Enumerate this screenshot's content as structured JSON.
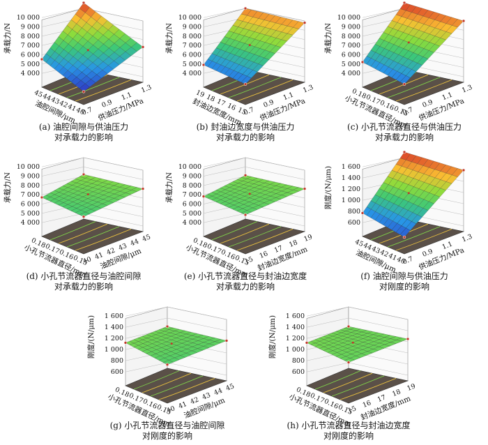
{
  "chart_data": [
    {
      "id": "a",
      "type": "surface",
      "caption_1": "(a)  油腔间隙与供油压力",
      "caption_2": "对承载力的影响",
      "zlabel": "承载力/N",
      "zticks": [
        "4 000",
        "5 000",
        "6 000",
        "7 000",
        "8 000",
        "9 000",
        "10 000"
      ],
      "zlim": [
        4000,
        10000
      ],
      "left_label": "油腔间隙/μm",
      "left_ticks": [
        "45",
        "44",
        "43",
        "42",
        "41",
        "40"
      ],
      "right_label": "供油压力/MPa",
      "right_ticks": [
        "0.7",
        "0.9",
        "1.1",
        "1.3"
      ],
      "corners": {
        "back": 10000,
        "left": 5800,
        "front": 4200,
        "right": 6600
      }
    },
    {
      "id": "b",
      "type": "surface",
      "caption_1": "(b)  封油边宽度与供油压力",
      "caption_2": "对承载力的影响",
      "zlabel": "承载力/N",
      "zticks": [
        "4 000",
        "5 000",
        "6 000",
        "7 000",
        "8 000",
        "9 000",
        "10 000"
      ],
      "zlim": [
        4000,
        10000
      ],
      "left_label": "封油边宽度/mm",
      "left_ticks": [
        "19",
        "18",
        "17",
        "16",
        "15"
      ],
      "right_label": "供油压力/MPa",
      "right_ticks": [
        "0.7",
        "0.9",
        "1.1",
        "1.3"
      ],
      "corners": {
        "back": 9400,
        "left": 5200,
        "front": 5000,
        "right": 9200
      }
    },
    {
      "id": "c",
      "type": "surface",
      "caption_1": "(c)  小孔节流器直径与供油压力",
      "caption_2": "对承载力的影响",
      "zlabel": "承载力/N",
      "zticks": [
        "4 000",
        "5 000",
        "6 000",
        "7 000",
        "8 000",
        "9 000",
        "10 000"
      ],
      "zlim": [
        4000,
        10000
      ],
      "left_label": "小孔节流器直径/mm",
      "left_ticks": [
        "0.18",
        "0.17",
        "0.16",
        "0.15"
      ],
      "right_label": "供油压力/MPa",
      "right_ticks": [
        "0.7",
        "0.9",
        "1.1",
        "1.3"
      ],
      "corners": {
        "back": 10000,
        "left": 5500,
        "front": 5000,
        "right": 9400
      }
    },
    {
      "id": "d",
      "type": "surface",
      "caption_1": "(d)  小孔节流器直径与油腔间隙",
      "caption_2": "对承载力的影响",
      "zlabel": "承载力/N",
      "zticks": [
        "4 000",
        "5 000",
        "6 000",
        "7 000",
        "8 000",
        "9 000",
        "10 000"
      ],
      "zlim": [
        4000,
        10000
      ],
      "left_label": "小孔节流器直径/mm",
      "left_ticks": [
        "0.18",
        "0.17",
        "0.16",
        "0.15"
      ],
      "right_label": "油腔间隙/μm",
      "right_ticks": [
        "40",
        "41",
        "42",
        "43",
        "44",
        "45"
      ],
      "corners": {
        "back": 7600,
        "left": 7000,
        "front": 6800,
        "right": 7400
      }
    },
    {
      "id": "e",
      "type": "surface",
      "caption_1": "(e)  小孔节流器直径与封油边宽度",
      "caption_2": "对承载力的影响",
      "zlabel": "承载力/N",
      "zticks": [
        "4 000",
        "5 000",
        "6 000",
        "7 000",
        "8 000",
        "9 000",
        "10 000"
      ],
      "zlim": [
        4000,
        10000
      ],
      "left_label": "小孔节流器直径/mm",
      "left_ticks": [
        "0.18",
        "0.17",
        "0.16",
        "0.15"
      ],
      "right_label": "封油边宽度/mm",
      "right_ticks": [
        "15",
        "16",
        "17",
        "18",
        "19"
      ],
      "corners": {
        "back": 7500,
        "left": 7100,
        "front": 7000,
        "right": 7400
      }
    },
    {
      "id": "f",
      "type": "surface",
      "caption_1": "(f)  油腔间隙与供油压力",
      "caption_2": "对刚度的影响",
      "zlabel": "刚度/(N/μm)",
      "zticks": [
        "600",
        "800",
        "1 000",
        "1 200",
        "1 400",
        "1 600"
      ],
      "zlim": [
        600,
        1600
      ],
      "left_label": "油腔间隙/μm",
      "left_ticks": [
        "45",
        "44",
        "43",
        "42",
        "41",
        "40"
      ],
      "right_label": "供油压力/MPa",
      "right_ticks": [
        "0.7",
        "0.9",
        "1.1",
        "1.3"
      ],
      "corners": {
        "back": 1600,
        "left": 820,
        "front": 700,
        "right": 1500
      }
    },
    {
      "id": "g",
      "type": "surface",
      "caption_1": "(g)  小孔节流器直径与油腔间隙",
      "caption_2": "对刚度的影响",
      "zlabel": "刚度/(N/μm)",
      "zticks": [
        "600",
        "800",
        "1 000",
        "1 200",
        "1 400",
        "1 600"
      ],
      "zlim": [
        600,
        1600
      ],
      "left_label": "小孔节流器直径/mm",
      "left_ticks": [
        "0.18",
        "0.17",
        "0.16",
        "0.15"
      ],
      "right_label": "油腔间隙/μm",
      "right_ticks": [
        "40",
        "41",
        "42",
        "43",
        "44",
        "45"
      ],
      "corners": {
        "back": 1150,
        "left": 1170,
        "front": 1090,
        "right": 1120
      }
    },
    {
      "id": "h",
      "type": "surface",
      "caption_1": "(h)  小孔节流器直径与封油边宽度",
      "caption_2": "对刚度的影响",
      "zlabel": "刚度/(N/μm)",
      "zticks": [
        "600",
        "800",
        "1 000",
        "1 200",
        "1 400",
        "1 600"
      ],
      "zlim": [
        600,
        1600
      ],
      "left_label": "小孔节流器直径/mm",
      "left_ticks": [
        "0.18",
        "0.17",
        "0.16",
        "0.15"
      ],
      "right_label": "封油边宽度/mm",
      "right_ticks": [
        "15",
        "16",
        "17",
        "18",
        "19"
      ],
      "corners": {
        "back": 1150,
        "left": 1170,
        "front": 1130,
        "right": 1150
      }
    }
  ]
}
